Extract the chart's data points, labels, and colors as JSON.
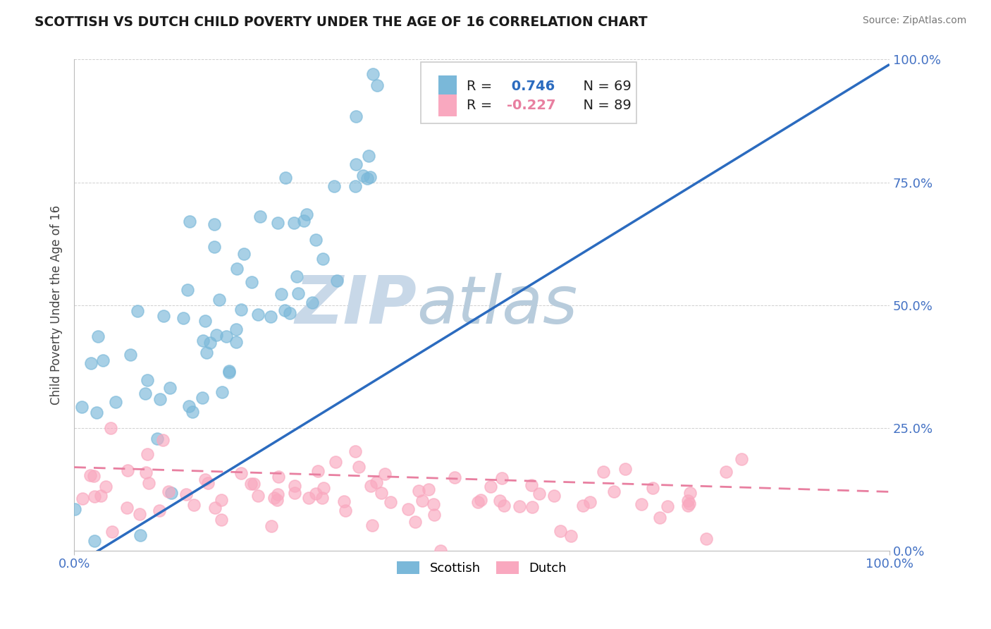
{
  "title": "SCOTTISH VS DUTCH CHILD POVERTY UNDER THE AGE OF 16 CORRELATION CHART",
  "source": "Source: ZipAtlas.com",
  "ylabel": "Child Poverty Under the Age of 16",
  "xlim": [
    0,
    1
  ],
  "ylim": [
    0,
    1
  ],
  "scottish_R": 0.746,
  "scottish_N": 69,
  "dutch_R": -0.227,
  "dutch_N": 89,
  "scottish_color": "#7ab8d9",
  "dutch_color": "#f9a8bf",
  "scottish_line_color": "#2b6bbf",
  "dutch_line_color": "#e87fa0",
  "watermark_zip": "ZIP",
  "watermark_atlas": "atlas",
  "watermark_color_zip": "#c5d8ea",
  "watermark_color_atlas": "#b8cfe0",
  "background_color": "#ffffff",
  "grid_color": "#d0d0d0",
  "right_tick_color": "#4472c4",
  "bottom_tick_color": "#4472c4"
}
